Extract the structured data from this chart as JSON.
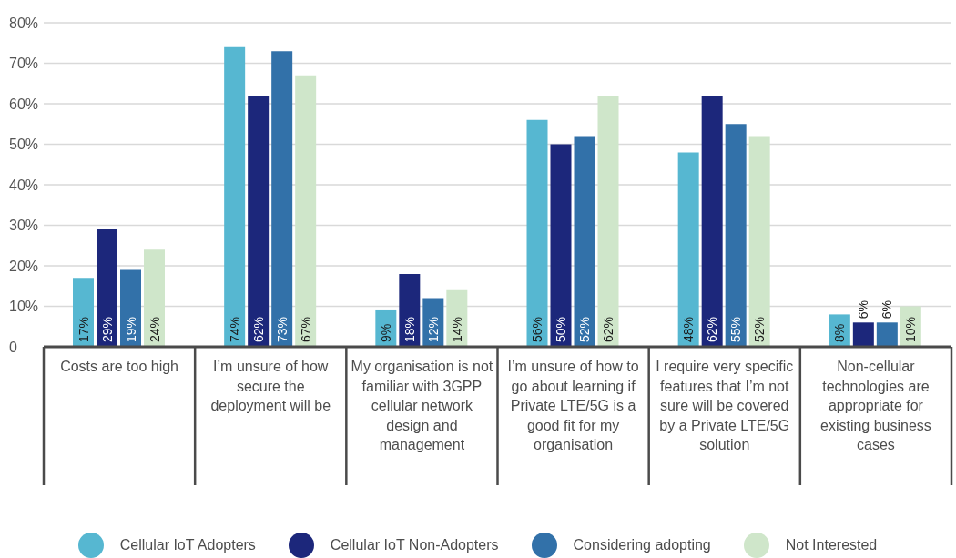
{
  "chart_data": {
    "type": "bar",
    "categories": [
      "Costs are too high",
      "I’m unsure of how secure the deployment will be",
      "My organisation is not familiar with 3GPP cellular network design and management",
      "I’m unsure of how to go about learning if Private LTE/5G is a good fit for my organisation",
      "I require very specific features that I’m not sure will be covered by a Private LTE/5G solution",
      "Non-cellular technologies are appropriate for existing business cases"
    ],
    "series": [
      {
        "name": "Cellular IoT Adopters",
        "color": "#56b7d1",
        "values": [
          17,
          74,
          9,
          56,
          48,
          8
        ],
        "value_labels": [
          "17%",
          "74%",
          "9%",
          "56%",
          "48%",
          "8%"
        ]
      },
      {
        "name": "Cellular IoT Non-Adopters",
        "color": "#1c277b",
        "values": [
          29,
          62,
          18,
          50,
          62,
          6
        ],
        "value_labels": [
          "29%",
          "62%",
          "18%",
          "50%",
          "62%",
          "6%"
        ]
      },
      {
        "name": "Considering adopting",
        "color": "#3271a9",
        "values": [
          19,
          73,
          12,
          52,
          55,
          6
        ],
        "value_labels": [
          "19%",
          "73%",
          "12%",
          "52%",
          "55%",
          "6%"
        ]
      },
      {
        "name": "Not Interested",
        "color": "#cfe6ca",
        "values": [
          24,
          67,
          14,
          62,
          52,
          10
        ],
        "value_labels": [
          "24%",
          "67%",
          "14%",
          "62%",
          "52%",
          "10%"
        ]
      }
    ],
    "ylim": [
      0,
      80
    ],
    "yticks": [
      0,
      {
        "value": 10,
        "label": "10%"
      },
      {
        "value": 20,
        "label": "20%"
      },
      {
        "value": 30,
        "label": "30%"
      },
      {
        "value": 40,
        "label": "40%"
      },
      {
        "value": 50,
        "label": "50%"
      },
      {
        "value": 60,
        "label": "60%"
      },
      {
        "value": 70,
        "label": "70%"
      },
      {
        "value": 80,
        "label": "80%"
      }
    ],
    "grid": "y",
    "legend": "bottom"
  }
}
